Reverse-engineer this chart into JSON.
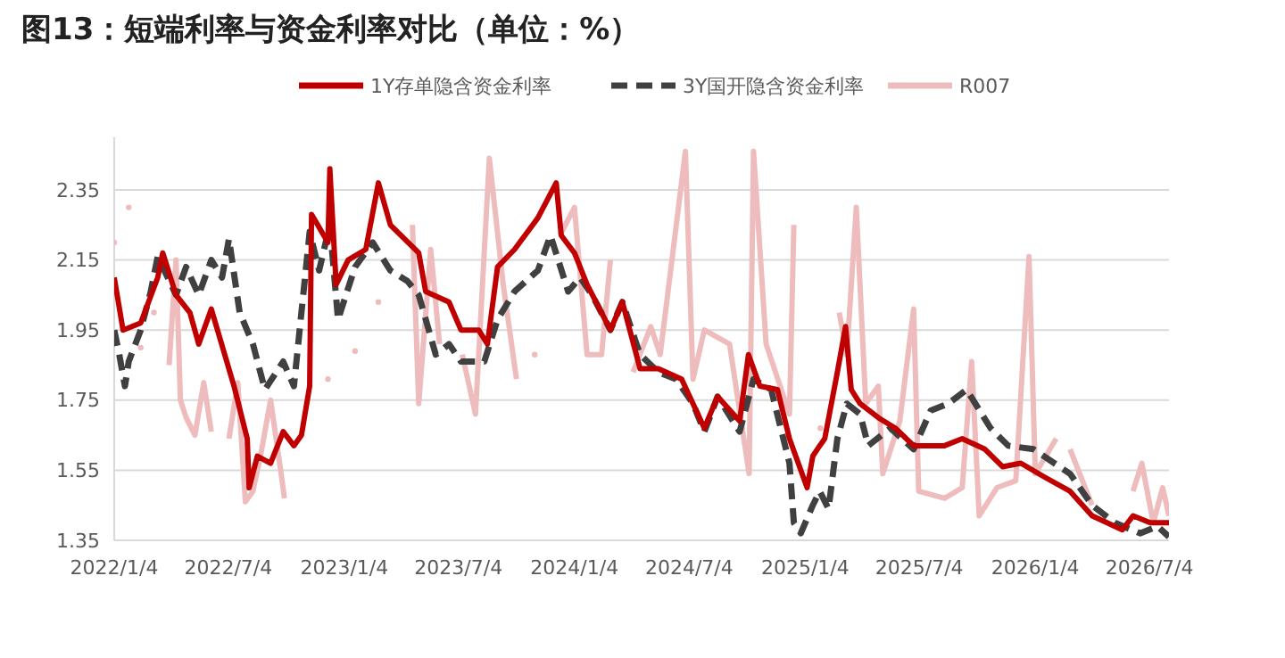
{
  "chart_data": {
    "type": "line",
    "title": "图13：短端利率与资金利率对比（单位：%）",
    "xlim": [
      "2022-01-04",
      "2026-08-04"
    ],
    "ylim": [
      1.35,
      2.5
    ],
    "xticks": [
      {
        "value": "2022-01-04",
        "label": "2022/1/4"
      },
      {
        "value": "2022-07-04",
        "label": "2022/7/4"
      },
      {
        "value": "2023-01-04",
        "label": "2023/1/4"
      },
      {
        "value": "2023-07-04",
        "label": "2023/7/4"
      },
      {
        "value": "2024-01-04",
        "label": "2024/1/4"
      },
      {
        "value": "2024-07-04",
        "label": "2024/7/4"
      },
      {
        "value": "2025-01-04",
        "label": "2025/1/4"
      },
      {
        "value": "2025-07-04",
        "label": "2025/7/4"
      },
      {
        "value": "2026-01-04",
        "label": "2026/1/4"
      },
      {
        "value": "2026-07-04",
        "label": "2026/7/4"
      }
    ],
    "yticks": [
      1.35,
      1.55,
      1.75,
      1.95,
      2.15,
      2.35
    ],
    "grid": "y",
    "legend": "top",
    "line_style": "solid",
    "marker": "none",
    "series": [
      {
        "name": "1Y存单隐含资金利率",
        "color": "#c00000",
        "x": [
          "2022-01-04",
          "2022-01-18",
          "2022-02-15",
          "2022-03-14",
          "2022-03-22",
          "2022-04-12",
          "2022-05-04",
          "2022-05-18",
          "2022-06-07",
          "2022-07-13",
          "2022-08-03",
          "2022-08-06",
          "2022-08-19",
          "2022-09-09",
          "2022-09-29",
          "2022-10-16",
          "2022-10-28",
          "2022-11-10",
          "2022-11-13",
          "2022-12-09",
          "2022-12-12",
          "2022-12-22",
          "2023-01-10",
          "2023-02-07",
          "2023-02-27",
          "2023-03-18",
          "2023-05-02",
          "2023-05-13",
          "2023-06-19",
          "2023-07-08",
          "2023-08-05",
          "2023-08-19",
          "2023-09-04",
          "2023-10-01",
          "2023-11-07",
          "2023-12-06",
          "2023-12-14",
          "2024-01-04",
          "2024-01-24",
          "2024-03-01",
          "2024-03-20",
          "2024-04-17",
          "2024-05-16",
          "2024-06-22",
          "2024-07-10",
          "2024-07-28",
          "2024-08-18",
          "2024-09-22",
          "2024-10-06",
          "2024-10-24",
          "2024-11-21",
          "2024-12-10",
          "2025-01-07",
          "2025-01-16",
          "2025-01-27",
          "2025-02-04",
          "2025-02-24",
          "2025-03-09",
          "2025-03-18",
          "2025-04-01",
          "2025-04-30",
          "2025-05-27",
          "2025-06-25",
          "2025-08-13",
          "2025-09-10",
          "2025-10-16",
          "2025-11-13",
          "2025-12-12",
          "2026-01-19",
          "2026-02-28",
          "2026-04-04",
          "2026-05-22",
          "2026-06-08",
          "2026-07-05",
          "2026-08-04"
        ],
        "values": [
          2.1,
          1.95,
          1.97,
          2.1,
          2.17,
          2.05,
          2.0,
          1.91,
          2.01,
          1.79,
          1.64,
          1.5,
          1.59,
          1.57,
          1.66,
          1.62,
          1.65,
          1.79,
          2.28,
          2.2,
          2.41,
          2.08,
          2.15,
          2.18,
          2.37,
          2.25,
          2.17,
          2.06,
          2.03,
          1.95,
          1.95,
          1.91,
          2.13,
          2.18,
          2.27,
          2.37,
          2.22,
          2.17,
          2.08,
          1.95,
          2.03,
          1.84,
          1.84,
          1.81,
          1.74,
          1.67,
          1.76,
          1.69,
          1.88,
          1.79,
          1.78,
          1.64,
          1.5,
          1.59,
          1.62,
          1.64,
          1.83,
          1.96,
          1.78,
          1.74,
          1.7,
          1.67,
          1.62,
          1.62,
          1.64,
          1.61,
          1.56,
          1.57,
          1.53,
          1.49,
          1.42,
          1.38,
          1.42,
          1.4,
          1.4
        ]
      },
      {
        "name": "3Y国开隐含资金利率",
        "color": "#404040",
        "line_style": "dashed",
        "x": [
          "2022-01-04",
          "2022-01-12",
          "2022-01-21",
          "2022-01-27",
          "2022-02-15",
          "2022-03-03",
          "2022-03-14",
          "2022-04-12",
          "2022-04-28",
          "2022-05-18",
          "2022-06-07",
          "2022-06-24",
          "2022-07-05",
          "2022-07-22",
          "2022-08-12",
          "2022-08-31",
          "2022-09-29",
          "2022-10-16",
          "2022-11-10",
          "2022-11-25",
          "2022-12-12",
          "2022-12-25",
          "2023-01-21",
          "2023-02-18",
          "2023-03-18",
          "2023-04-14",
          "2023-05-02",
          "2023-05-29",
          "2023-06-19",
          "2023-07-08",
          "2023-08-14",
          "2023-09-04",
          "2023-10-01",
          "2023-11-07",
          "2023-11-27",
          "2023-12-25",
          "2024-01-13",
          "2024-02-01",
          "2024-03-01",
          "2024-03-20",
          "2024-04-17",
          "2024-05-16",
          "2024-06-13",
          "2024-07-10",
          "2024-07-28",
          "2024-08-18",
          "2024-09-22",
          "2024-10-14",
          "2024-11-11",
          "2024-12-10",
          "2024-12-17",
          "2024-12-28",
          "2025-01-16",
          "2025-01-27",
          "2025-02-10",
          "2025-02-24",
          "2025-03-11",
          "2025-04-01",
          "2025-04-14",
          "2025-05-19",
          "2025-06-25",
          "2025-07-22",
          "2025-08-19",
          "2025-09-17",
          "2025-10-25",
          "2025-11-22",
          "2026-01-01",
          "2026-02-28",
          "2026-04-04",
          "2026-05-10",
          "2026-06-19",
          "2026-07-17",
          "2026-08-04"
        ],
        "values": [
          1.95,
          1.88,
          1.79,
          1.86,
          1.95,
          2.06,
          2.16,
          2.05,
          2.13,
          2.05,
          2.15,
          2.1,
          2.21,
          2.0,
          1.91,
          1.78,
          1.86,
          1.79,
          2.23,
          2.12,
          2.25,
          1.98,
          2.13,
          2.2,
          2.12,
          2.09,
          2.05,
          1.88,
          1.91,
          1.86,
          1.86,
          1.98,
          2.06,
          2.12,
          2.22,
          2.06,
          2.1,
          2.05,
          1.95,
          2.03,
          1.88,
          1.83,
          1.81,
          1.74,
          1.66,
          1.76,
          1.66,
          1.81,
          1.78,
          1.57,
          1.4,
          1.37,
          1.45,
          1.49,
          1.44,
          1.64,
          1.74,
          1.71,
          1.62,
          1.67,
          1.61,
          1.72,
          1.74,
          1.78,
          1.67,
          1.62,
          1.61,
          1.54,
          1.45,
          1.4,
          1.37,
          1.39,
          1.36
        ]
      },
      {
        "name": "R007",
        "color": "#eebcbc",
        "x": [
          "2022-01-04",
          "2022-01-12",
          "2022-01-27",
          "2022-02-10",
          "2022-02-15",
          "2022-03-01",
          "2022-03-08",
          "2022-03-22",
          "2022-04-01",
          "2022-04-12",
          "2022-04-19",
          "2022-04-28",
          "2022-05-12",
          "2022-05-26",
          "2022-06-07",
          "2022-06-24",
          "2022-07-05",
          "2022-07-19",
          "2022-07-31",
          "2022-08-12",
          "2022-08-25",
          "2022-09-09",
          "2022-09-25",
          "2022-10-01",
          "2022-10-22",
          "2022-11-05",
          "2022-11-25",
          "2022-12-09",
          "2022-12-31",
          "2023-01-21",
          "2023-02-07",
          "2023-02-27",
          "2023-03-18",
          "2023-04-22",
          "2023-05-02",
          "2023-05-21",
          "2023-06-04",
          "2023-06-28",
          "2023-07-10",
          "2023-07-31",
          "2023-08-22",
          "2023-09-13",
          "2023-10-04",
          "2023-10-19",
          "2023-11-02",
          "2023-11-27",
          "2023-12-12",
          "2024-01-04",
          "2024-01-24",
          "2024-02-16",
          "2024-03-01",
          "2024-03-23",
          "2024-04-06",
          "2024-05-04",
          "2024-05-19",
          "2024-06-28",
          "2024-07-10",
          "2024-07-28",
          "2024-09-06",
          "2024-10-07",
          "2024-10-14",
          "2024-11-03",
          "2024-12-10",
          "2024-12-17",
          "2025-01-07",
          "2025-01-16",
          "2025-01-28",
          "2025-02-12",
          "2025-02-27",
          "2025-03-11",
          "2025-03-26",
          "2025-04-10",
          "2025-04-30",
          "2025-05-07",
          "2025-06-03",
          "2025-06-25",
          "2025-07-03",
          "2025-08-13",
          "2025-09-10",
          "2025-09-25",
          "2025-10-07",
          "2025-11-04",
          "2025-12-04",
          "2025-12-25",
          "2026-01-04",
          "2026-02-06",
          "2026-02-12",
          "2026-02-28",
          "2026-04-04",
          "2026-05-07",
          "2026-06-08",
          "2026-06-22",
          "2026-07-10",
          "2026-07-25",
          "2026-08-04"
        ],
        "values": [
          2.2,
          null,
          2.3,
          null,
          1.9,
          null,
          2.0,
          null,
          1.85,
          2.15,
          1.75,
          1.7,
          1.65,
          1.8,
          1.66,
          null,
          1.64,
          1.8,
          1.46,
          1.49,
          1.6,
          1.75,
          1.55,
          1.47,
          null,
          null,
          null,
          1.81,
          null,
          1.89,
          null,
          2.03,
          null,
          2.25,
          1.74,
          2.18,
          1.91,
          null,
          1.88,
          1.71,
          2.44,
          2.08,
          1.81,
          null,
          1.88,
          null,
          2.22,
          2.3,
          1.88,
          1.88,
          2.15,
          null,
          1.83,
          1.96,
          1.88,
          2.46,
          1.81,
          1.95,
          1.91,
          1.54,
          2.46,
          1.91,
          1.71,
          2.25,
          null,
          null,
          1.67,
          null,
          2.0,
          1.88,
          2.3,
          1.74,
          1.79,
          1.54,
          1.69,
          2.01,
          1.49,
          1.47,
          1.5,
          1.86,
          1.42,
          1.5,
          1.52,
          2.16,
          1.54,
          1.64,
          null,
          1.61,
          1.45,
          null,
          1.49,
          1.57,
          1.4,
          1.5,
          1.42
        ]
      }
    ]
  }
}
